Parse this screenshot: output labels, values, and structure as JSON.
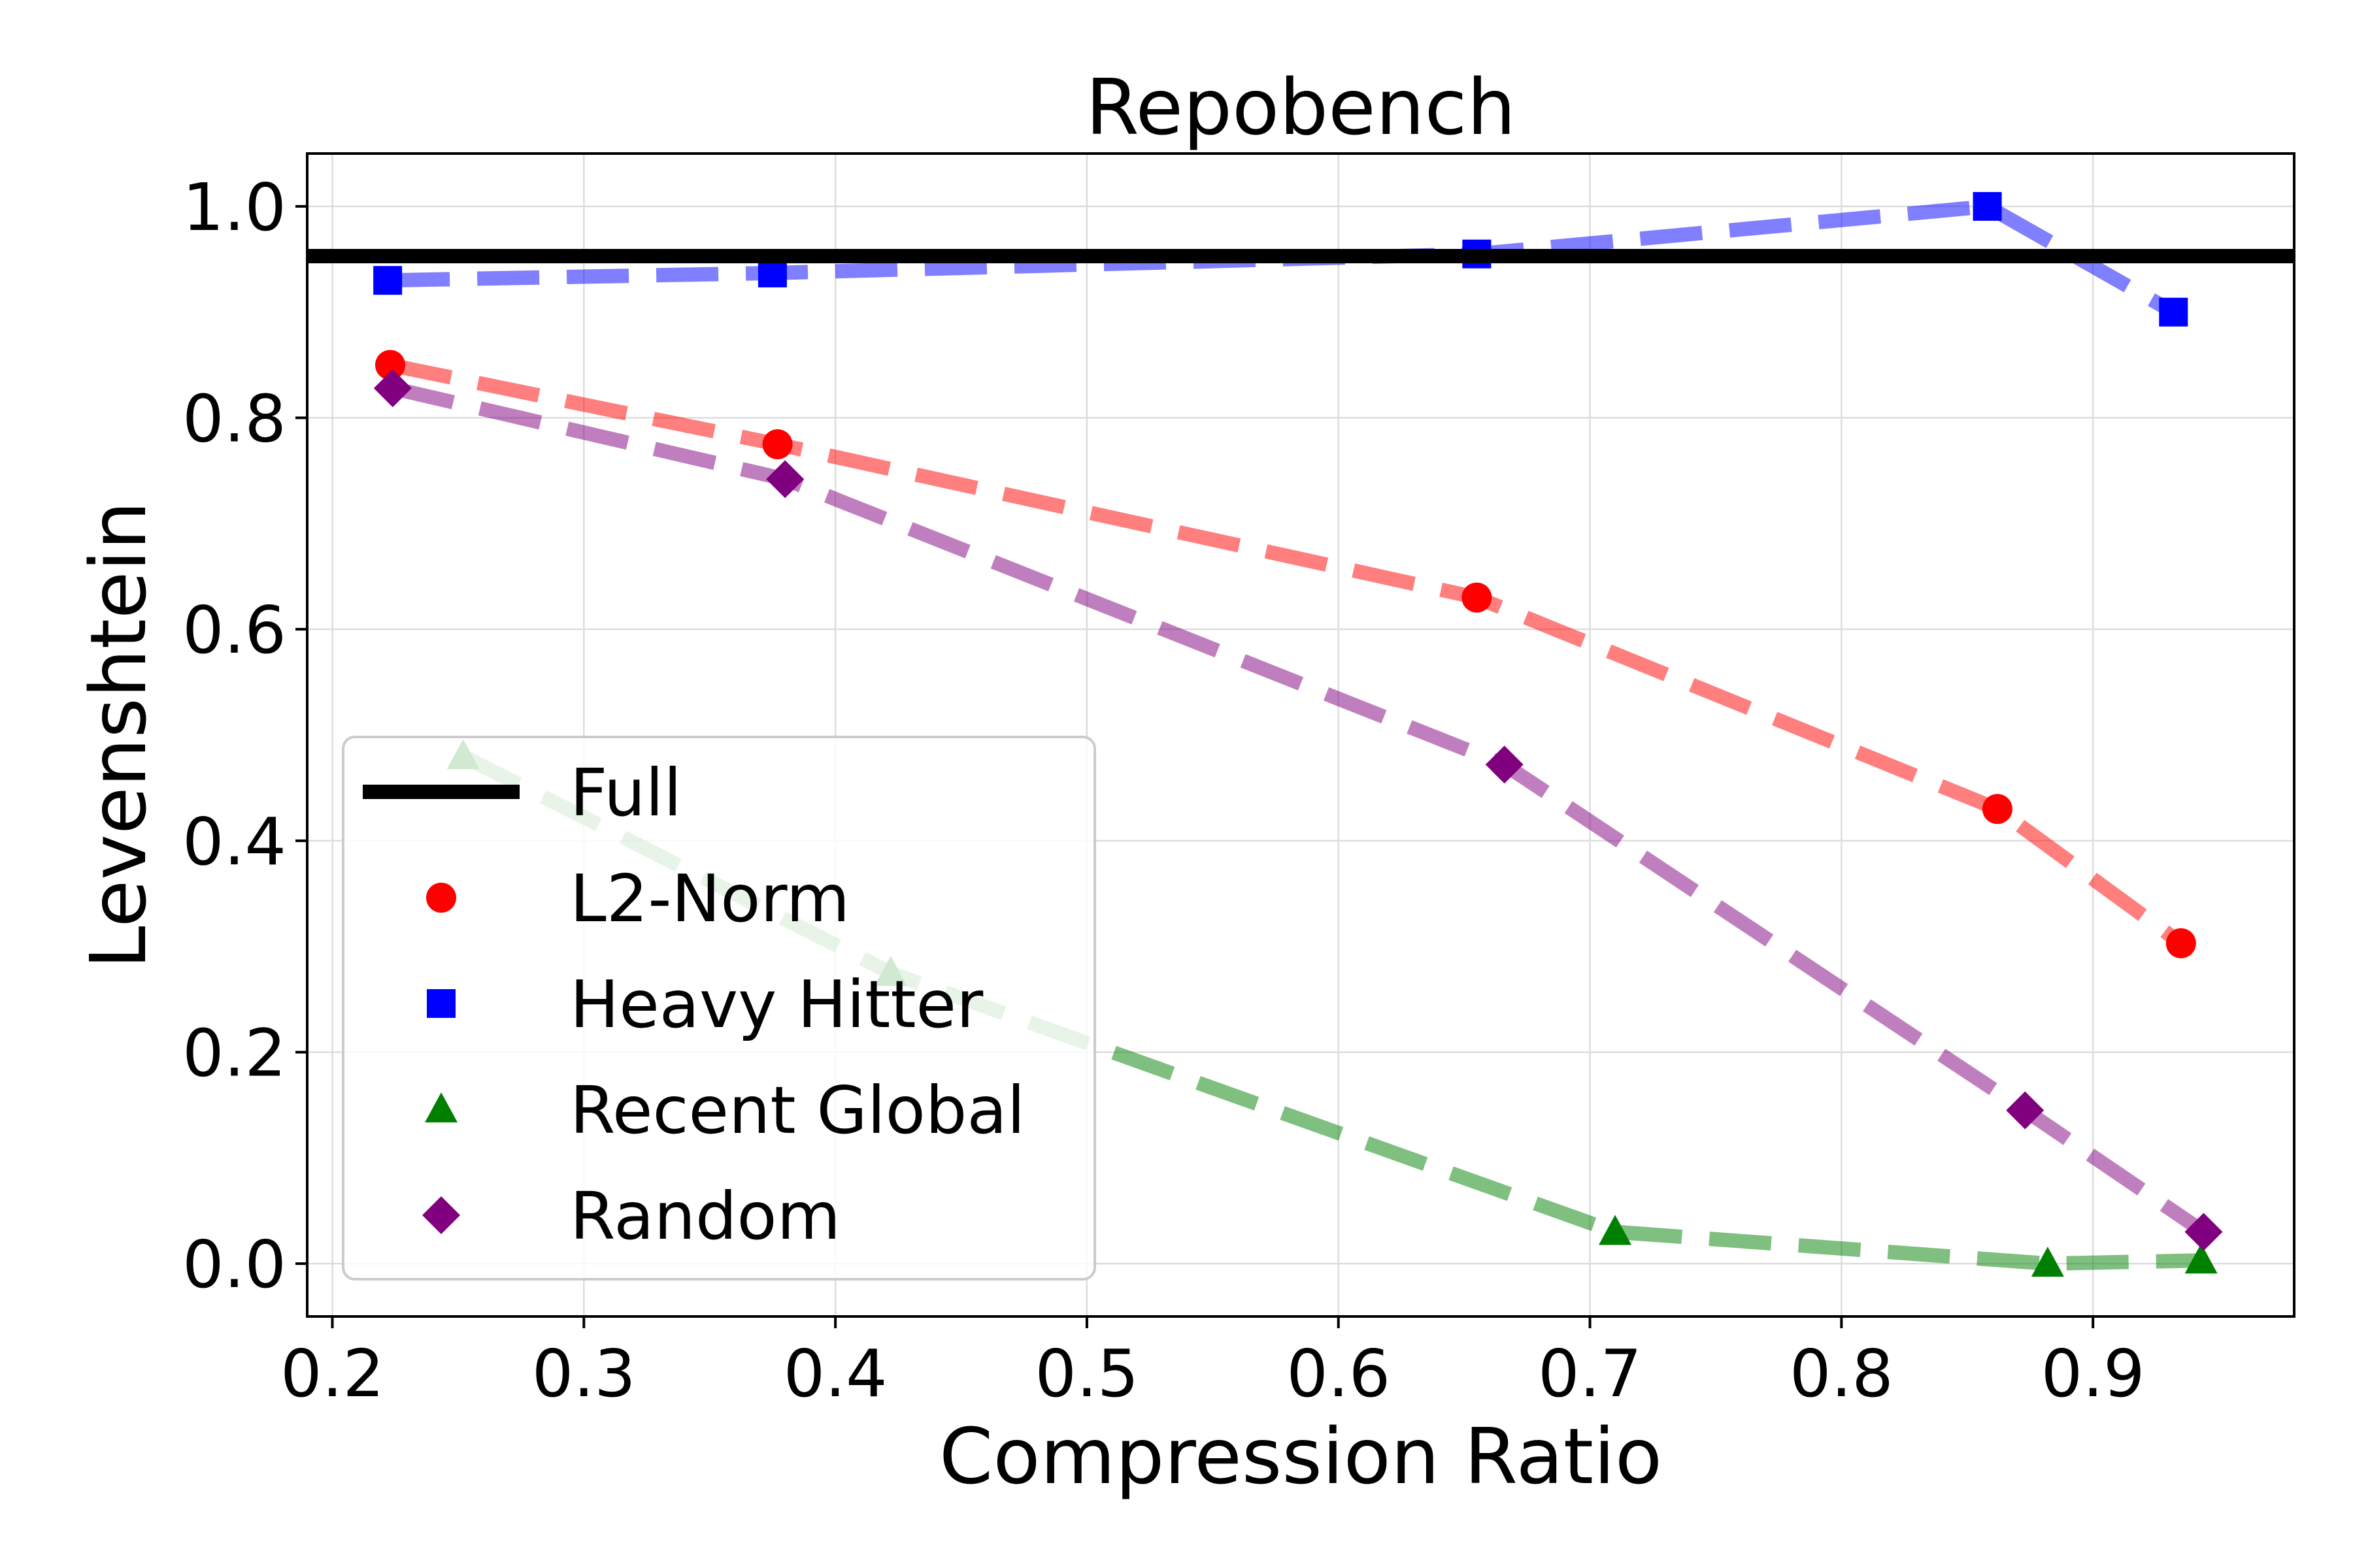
{
  "chart_data": {
    "type": "line",
    "title": "Repobench",
    "xlabel": "Compression Ratio",
    "ylabel": "Levenshtein",
    "xlim": [
      0.19,
      0.98
    ],
    "ylim": [
      -0.05,
      1.05
    ],
    "xticks": [
      0.2,
      0.3,
      0.4,
      0.5,
      0.6,
      0.7,
      0.8,
      0.9
    ],
    "xtick_labels": [
      "0.2",
      "0.3",
      "0.4",
      "0.5",
      "0.6",
      "0.7",
      "0.8",
      "0.9"
    ],
    "yticks": [
      0.0,
      0.2,
      0.4,
      0.6,
      0.8,
      1.0
    ],
    "ytick_labels": [
      "0.0",
      "0.2",
      "0.4",
      "0.6",
      "0.8",
      "1.0"
    ],
    "grid": true,
    "legend_position": "lower-left",
    "reference_line": {
      "name": "Full",
      "y": 0.953,
      "color": "#000000"
    },
    "series": [
      {
        "name": "L2-Norm",
        "color": "#ff0000",
        "marker": "circle",
        "x": [
          0.223,
          0.377,
          0.655,
          0.862,
          0.935
        ],
        "y": [
          0.85,
          0.775,
          0.63,
          0.43,
          0.303
        ]
      },
      {
        "name": "Heavy Hitter",
        "color": "#0000ff",
        "marker": "square",
        "x": [
          0.222,
          0.375,
          0.655,
          0.858,
          0.932
        ],
        "y": [
          0.93,
          0.937,
          0.955,
          1.0,
          0.9
        ]
      },
      {
        "name": "Recent Global",
        "color": "#008000",
        "marker": "triangle",
        "x": [
          0.252,
          0.422,
          0.71,
          0.882,
          0.943
        ],
        "y": [
          0.48,
          0.275,
          0.03,
          0.0,
          0.003
        ]
      },
      {
        "name": "Random",
        "color": "#800080",
        "marker": "diamond",
        "x": [
          0.224,
          0.38,
          0.666,
          0.873,
          0.944
        ],
        "y": [
          0.828,
          0.742,
          0.472,
          0.145,
          0.03
        ]
      }
    ]
  }
}
